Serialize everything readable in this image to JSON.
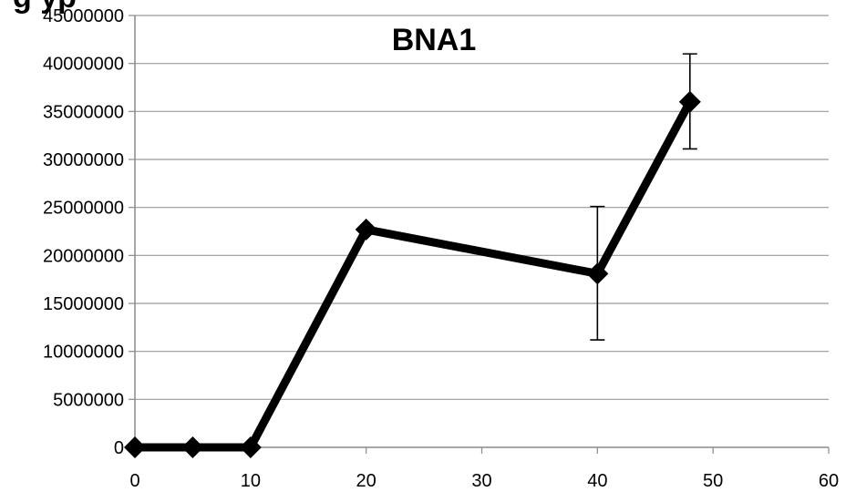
{
  "chart_data": {
    "type": "line",
    "title": "BNA1",
    "partial_header_text": "g   yp",
    "xlabel": "",
    "ylabel": "",
    "xlim": [
      0,
      60
    ],
    "ylim": [
      0,
      45000000
    ],
    "x_ticks": [
      "0",
      "10",
      "20",
      "30",
      "40",
      "50",
      "60"
    ],
    "y_ticks": [
      "0",
      "5000000",
      "10000000",
      "15000000",
      "20000000",
      "25000000",
      "30000000",
      "35000000",
      "40000000",
      "45000000"
    ],
    "grid": "horizontal",
    "legend": "none",
    "series": [
      {
        "color": "#000000",
        "marker": "diamond",
        "points": [
          {
            "x": 0,
            "y": 0
          },
          {
            "x": 5,
            "y": 0
          },
          {
            "x": 10,
            "y": 0
          },
          {
            "x": 20,
            "y": 22700000
          },
          {
            "x": 40,
            "y": 18100000,
            "err_low": 11200000,
            "err_high": 25100000
          },
          {
            "x": 48,
            "y": 36000000,
            "err_low": 31100000,
            "err_high": 41000000
          }
        ]
      }
    ]
  }
}
